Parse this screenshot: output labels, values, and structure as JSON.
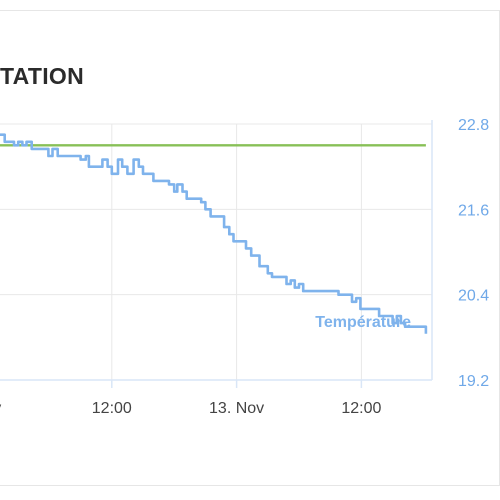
{
  "card": {
    "title": "TATION"
  },
  "chart_data": {
    "type": "line",
    "title": "TATION",
    "x_ticks": [
      {
        "label": "Nov",
        "hour": 0
      },
      {
        "label": "12:00",
        "hour": 12
      },
      {
        "label": "13. Nov",
        "hour": 24
      },
      {
        "label": "12:00",
        "hour": 36
      }
    ],
    "xlim_hours": [
      0,
      42.2
    ],
    "y_ticks": [
      "22.8",
      "21.6",
      "20.4",
      "19.2"
    ],
    "ylim": [
      19.2,
      22.8
    ],
    "grid": true,
    "series": [
      {
        "name": "Température",
        "color": "#7fb3ec",
        "step": true,
        "points": [
          [
            0.0,
            22.55
          ],
          [
            0.4,
            22.55
          ],
          [
            0.8,
            22.65
          ],
          [
            1.3,
            22.65
          ],
          [
            1.7,
            22.55
          ],
          [
            2.2,
            22.55
          ],
          [
            2.6,
            22.5
          ],
          [
            3.0,
            22.55
          ],
          [
            3.4,
            22.5
          ],
          [
            3.8,
            22.55
          ],
          [
            4.3,
            22.45
          ],
          [
            5.4,
            22.45
          ],
          [
            5.9,
            22.35
          ],
          [
            6.3,
            22.45
          ],
          [
            6.8,
            22.35
          ],
          [
            8.6,
            22.35
          ],
          [
            9.0,
            22.3
          ],
          [
            9.5,
            22.35
          ],
          [
            9.8,
            22.2
          ],
          [
            10.7,
            22.2
          ],
          [
            11.1,
            22.3
          ],
          [
            11.6,
            22.2
          ],
          [
            12.0,
            22.1
          ],
          [
            12.6,
            22.3
          ],
          [
            13.0,
            22.2
          ],
          [
            13.5,
            22.1
          ],
          [
            14.1,
            22.3
          ],
          [
            14.6,
            22.2
          ],
          [
            15.0,
            22.1
          ],
          [
            16.0,
            22.0
          ],
          [
            16.9,
            22.0
          ],
          [
            17.5,
            21.95
          ],
          [
            18.0,
            21.85
          ],
          [
            18.3,
            21.95
          ],
          [
            18.8,
            21.85
          ],
          [
            19.2,
            21.75
          ],
          [
            20.1,
            21.75
          ],
          [
            20.6,
            21.7
          ],
          [
            21.0,
            21.6
          ],
          [
            21.5,
            21.5
          ],
          [
            22.4,
            21.5
          ],
          [
            22.8,
            21.35
          ],
          [
            23.3,
            21.25
          ],
          [
            23.7,
            21.15
          ],
          [
            24.5,
            21.15
          ],
          [
            24.9,
            21.05
          ],
          [
            25.4,
            20.95
          ],
          [
            25.8,
            20.95
          ],
          [
            26.2,
            20.8
          ],
          [
            26.6,
            20.8
          ],
          [
            27.0,
            20.7
          ],
          [
            27.4,
            20.65
          ],
          [
            28.3,
            20.65
          ],
          [
            28.8,
            20.55
          ],
          [
            29.2,
            20.6
          ],
          [
            29.6,
            20.5
          ],
          [
            30.0,
            20.55
          ],
          [
            30.4,
            20.45
          ],
          [
            33.4,
            20.45
          ],
          [
            33.8,
            20.4
          ],
          [
            34.6,
            20.4
          ],
          [
            35.1,
            20.3
          ],
          [
            35.5,
            20.35
          ],
          [
            35.9,
            20.2
          ],
          [
            37.3,
            20.2
          ],
          [
            37.7,
            20.1
          ],
          [
            38.6,
            20.1
          ],
          [
            39.0,
            20.0
          ],
          [
            39.4,
            20.1
          ],
          [
            39.8,
            20.0
          ],
          [
            40.2,
            19.95
          ],
          [
            41.8,
            19.95
          ],
          [
            42.2,
            19.85
          ]
        ]
      },
      {
        "color": "#88c057",
        "points": [
          [
            0.0,
            22.5
          ],
          [
            42.2,
            22.5
          ]
        ]
      }
    ]
  }
}
